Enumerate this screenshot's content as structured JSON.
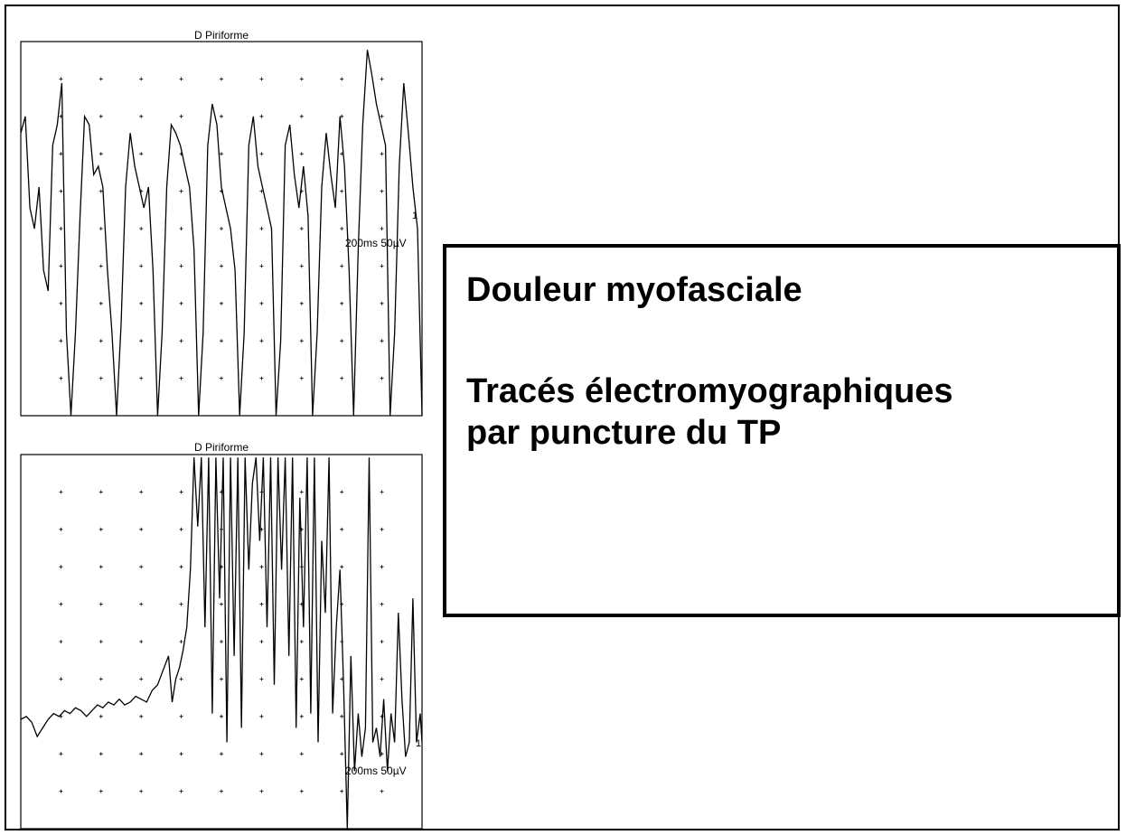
{
  "chart_data": [
    {
      "type": "line",
      "title": "D Piriforme",
      "scale_label": "200ms 50µV",
      "marker": "1",
      "color": "#000000",
      "grid": "dotted-crosses",
      "x": [
        0,
        5,
        10,
        15,
        20,
        25,
        30,
        35,
        40,
        45,
        50,
        55,
        60,
        65,
        70,
        75,
        80,
        85,
        90,
        95,
        100,
        105,
        110,
        115,
        120,
        125,
        130,
        135,
        140,
        145,
        150,
        155,
        160,
        165,
        170,
        175,
        180,
        185,
        190,
        195,
        200,
        205,
        210,
        215,
        220,
        225,
        230,
        235,
        240,
        245,
        250,
        255,
        260,
        265,
        270,
        275,
        280,
        285,
        290,
        295,
        300,
        305,
        310,
        315,
        320,
        325,
        330,
        335,
        340,
        345,
        350,
        355,
        360,
        365,
        370,
        375,
        380,
        385,
        390,
        395,
        400,
        405,
        410,
        415,
        420,
        425,
        430,
        435,
        440
      ],
      "y": [
        58,
        62,
        40,
        35,
        45,
        25,
        20,
        55,
        60,
        70,
        10,
        -10,
        10,
        38,
        62,
        60,
        48,
        50,
        45,
        25,
        10,
        -10,
        12,
        45,
        58,
        50,
        45,
        40,
        45,
        25,
        -10,
        10,
        45,
        60,
        58,
        55,
        50,
        45,
        30,
        -10,
        10,
        55,
        65,
        60,
        45,
        40,
        35,
        25,
        -10,
        10,
        55,
        62,
        50,
        45,
        40,
        35,
        -10,
        8,
        55,
        60,
        48,
        40,
        50,
        38,
        -10,
        10,
        45,
        58,
        48,
        40,
        62,
        50,
        25,
        -10,
        30,
        60,
        78,
        72,
        65,
        60,
        55,
        -10,
        10,
        50,
        70,
        58,
        45,
        35,
        -10
      ],
      "ylim": [
        -10,
        80
      ]
    },
    {
      "type": "line",
      "title": "D Piriforme",
      "scale_label": "200ms 50µV",
      "marker": "1",
      "color": "#000000",
      "grid": "dotted-crosses",
      "x": [
        0,
        6,
        12,
        18,
        24,
        30,
        36,
        42,
        48,
        54,
        60,
        66,
        72,
        78,
        84,
        90,
        96,
        102,
        108,
        114,
        120,
        126,
        132,
        138,
        144,
        150,
        156,
        162,
        166,
        170,
        174,
        178,
        182,
        186,
        190,
        194,
        198,
        202,
        206,
        210,
        214,
        218,
        222,
        226,
        230,
        234,
        238,
        242,
        246,
        250,
        254,
        258,
        262,
        266,
        270,
        274,
        278,
        282,
        286,
        290,
        294,
        298,
        302,
        306,
        310,
        314,
        318,
        322,
        326,
        330,
        334,
        338,
        342,
        346,
        350,
        354,
        358,
        362,
        366,
        370,
        374,
        378,
        382,
        386,
        390,
        394,
        398,
        402,
        406,
        410,
        414,
        418,
        422,
        426,
        430,
        434,
        438,
        440
      ],
      "y": [
        8,
        9,
        7,
        2,
        5,
        8,
        10,
        9,
        11,
        10,
        12,
        11,
        9,
        11,
        13,
        12,
        14,
        13,
        15,
        13,
        14,
        16,
        15,
        14,
        18,
        20,
        25,
        30,
        14,
        22,
        26,
        32,
        40,
        60,
        99,
        75,
        99,
        40,
        99,
        10,
        99,
        50,
        99,
        0,
        99,
        30,
        99,
        5,
        99,
        60,
        90,
        99,
        70,
        99,
        40,
        99,
        20,
        99,
        60,
        99,
        30,
        99,
        5,
        85,
        40,
        99,
        10,
        99,
        0,
        70,
        45,
        99,
        10,
        40,
        60,
        20,
        -30,
        30,
        -10,
        10,
        -5,
        5,
        99,
        0,
        5,
        -5,
        15,
        -10,
        10,
        0,
        45,
        15,
        -5,
        0,
        50,
        0,
        10,
        0
      ],
      "ylim": [
        -30,
        100
      ]
    }
  ],
  "caption": {
    "title": "Douleur myofasciale",
    "line1": "Tracés électromyographiques",
    "line2": "par puncture du TP"
  }
}
